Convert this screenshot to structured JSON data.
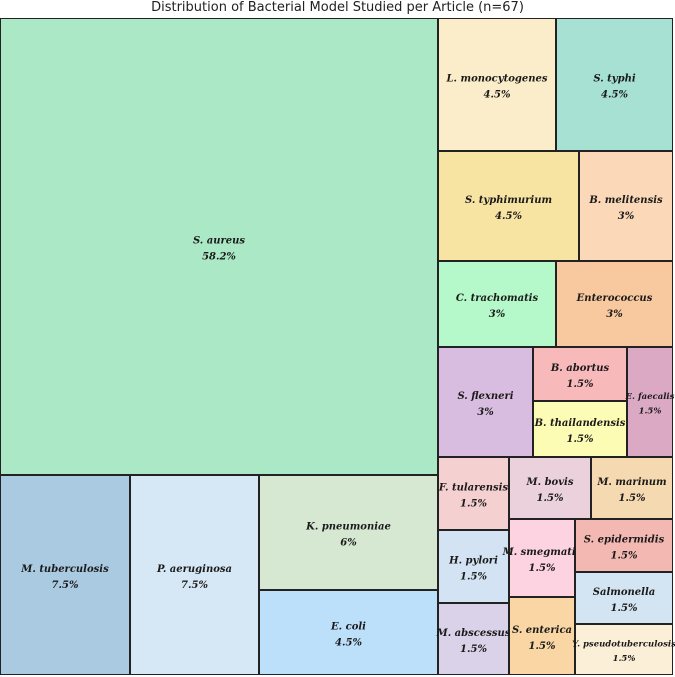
{
  "chart_data": {
    "type": "treemap",
    "title": "Distribution of Bacterial Model Studied per Article (n=67)",
    "total": 67,
    "items": [
      {
        "name": "S. aureus",
        "percent": "58.2%",
        "value": 58.2,
        "color": "#abe9c6"
      },
      {
        "name": "M. tuberculosis",
        "percent": "7.5%",
        "value": 7.5,
        "color": "#a9cae1"
      },
      {
        "name": "P. aeruginosa",
        "percent": "7.5%",
        "value": 7.5,
        "color": "#d6e8f6"
      },
      {
        "name": "K. pneumoniae",
        "percent": "6%",
        "value": 6.0,
        "color": "#d7e8d2"
      },
      {
        "name": "E. coli",
        "percent": "4.5%",
        "value": 4.5,
        "color": "#bcdffa"
      },
      {
        "name": "L. monocytogenes",
        "percent": "4.5%",
        "value": 4.5,
        "color": "#fcedca"
      },
      {
        "name": "S. typhi",
        "percent": "4.5%",
        "value": 4.5,
        "color": "#a6e1d4"
      },
      {
        "name": "S. typhimurium",
        "percent": "4.5%",
        "value": 4.5,
        "color": "#f7e4a2"
      },
      {
        "name": "B. melitensis",
        "percent": "3%",
        "value": 3.0,
        "color": "#fad8b8"
      },
      {
        "name": "C. trachomatis",
        "percent": "3%",
        "value": 3.0,
        "color": "#b5f8c9"
      },
      {
        "name": "Enterococcus",
        "percent": "3%",
        "value": 3.0,
        "color": "#f8c89e"
      },
      {
        "name": "S. flexneri",
        "percent": "3%",
        "value": 3.0,
        "color": "#d8bde0"
      },
      {
        "name": "B. abortus",
        "percent": "1.5%",
        "value": 1.5,
        "color": "#f8b9bb"
      },
      {
        "name": "B. thailandensis",
        "percent": "1.5%",
        "value": 1.5,
        "color": "#fdfcb4"
      },
      {
        "name": "E. faecalis",
        "percent": "1.5%",
        "value": 1.5,
        "color": "#dca9c4"
      },
      {
        "name": "F. tularensis",
        "percent": "1.5%",
        "value": 1.5,
        "color": "#f5d0d0"
      },
      {
        "name": "M. bovis",
        "percent": "1.5%",
        "value": 1.5,
        "color": "#ead1dc"
      },
      {
        "name": "M. marinum",
        "percent": "1.5%",
        "value": 1.5,
        "color": "#f5d9b0"
      },
      {
        "name": "H. pylori",
        "percent": "1.5%",
        "value": 1.5,
        "color": "#d3e3f3"
      },
      {
        "name": "M. smegmatis",
        "percent": "1.5%",
        "value": 1.5,
        "color": "#fdd3e2"
      },
      {
        "name": "S. epidermidis",
        "percent": "1.5%",
        "value": 1.5,
        "color": "#f4b8b3"
      },
      {
        "name": "Salmonella",
        "percent": "1.5%",
        "value": 1.5,
        "color": "#d3e5f2"
      },
      {
        "name": "M. abscessus",
        "percent": "1.5%",
        "value": 1.5,
        "color": "#dad2e8"
      },
      {
        "name": "S. enterica",
        "percent": "1.5%",
        "value": 1.5,
        "color": "#f9d6a4"
      },
      {
        "name": "Y. pseudotuberculosis",
        "percent": "1.5%",
        "value": 1.5,
        "color": "#fcefd8"
      }
    ]
  }
}
